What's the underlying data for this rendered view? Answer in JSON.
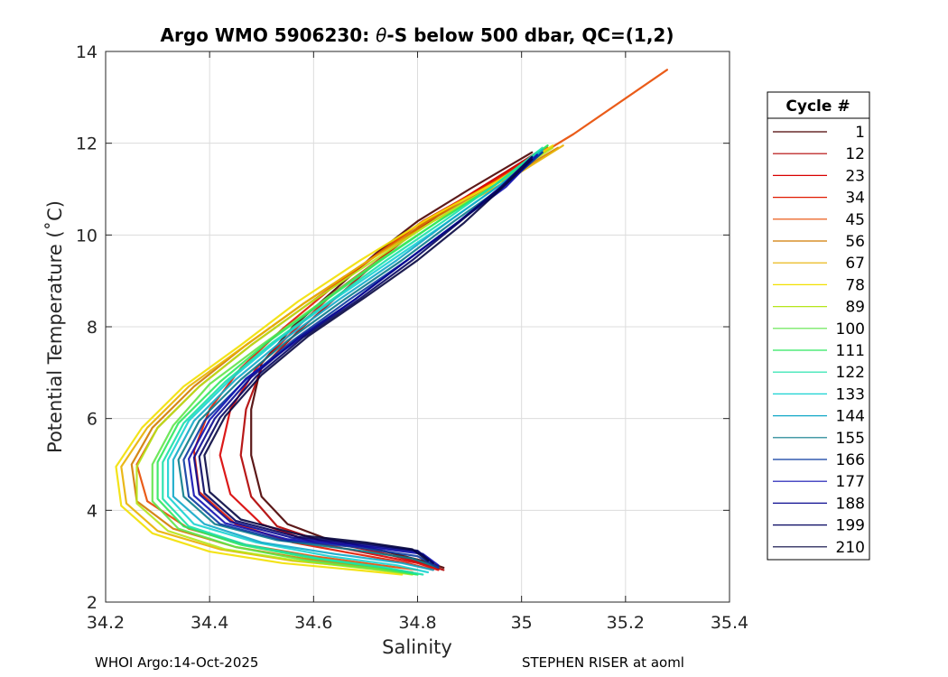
{
  "chart_data": {
    "type": "line",
    "title": "Argo WMO 5906230: θ-S below 500 dbar,  QC=(1,2)",
    "title_parts": {
      "pre": "Argo WMO 5906230: ",
      "theta": "θ",
      "post": "-S below 500 dbar,  QC=(1,2)"
    },
    "xlabel": "Salinity",
    "ylabel": "Potential Temperature (˚C)",
    "xlim": [
      34.2,
      35.4
    ],
    "ylim": [
      2,
      14
    ],
    "x_ticks": [
      34.2,
      34.4,
      34.6,
      34.8,
      35,
      35.2,
      35.4
    ],
    "x_tick_labels": [
      "34.2",
      "34.4",
      "34.6",
      "34.8",
      "35",
      "35.2",
      "35.4"
    ],
    "y_ticks": [
      2,
      4,
      6,
      8,
      10,
      12,
      14
    ],
    "y_tick_labels": [
      "2",
      "4",
      "6",
      "8",
      "10",
      "12",
      "14"
    ],
    "grid": true,
    "legend": {
      "title": "Cycle #",
      "placement": "right, outside",
      "entries": [
        {
          "label": "1",
          "color": "#4a0000"
        },
        {
          "label": "12",
          "color": "#b00000"
        },
        {
          "label": "23",
          "color": "#d80000"
        },
        {
          "label": "34",
          "color": "#e01a00"
        },
        {
          "label": "45",
          "color": "#e84a00"
        },
        {
          "label": "56",
          "color": "#d07a00"
        },
        {
          "label": "67",
          "color": "#e8b000"
        },
        {
          "label": "78",
          "color": "#f2e000"
        },
        {
          "label": "89",
          "color": "#b6e61a"
        },
        {
          "label": "100",
          "color": "#5fe64a"
        },
        {
          "label": "111",
          "color": "#2ee85f"
        },
        {
          "label": "122",
          "color": "#18e0a8"
        },
        {
          "label": "133",
          "color": "#18d2d2"
        },
        {
          "label": "144",
          "color": "#12a8c8"
        },
        {
          "label": "155",
          "color": "#0a7a8a"
        },
        {
          "label": "166",
          "color": "#0a3aa0"
        },
        {
          "label": "177",
          "color": "#1010b0"
        },
        {
          "label": "188",
          "color": "#0a0a90"
        },
        {
          "label": "199",
          "color": "#050560"
        },
        {
          "label": "210",
          "color": "#050540"
        }
      ]
    },
    "series": [
      {
        "name": "1",
        "color": "#4a0000",
        "x": [
          34.85,
          34.81,
          34.72,
          34.62,
          34.55,
          34.5,
          34.48,
          34.48,
          34.5,
          34.56,
          34.64,
          34.72,
          34.8,
          34.9,
          35.02
        ],
        "y": [
          2.75,
          2.9,
          3.15,
          3.4,
          3.7,
          4.3,
          5.2,
          6.2,
          7.2,
          8.0,
          8.8,
          9.6,
          10.3,
          11.0,
          11.8
        ]
      },
      {
        "name": "12",
        "color": "#b00000",
        "x": [
          34.85,
          34.81,
          34.72,
          34.61,
          34.53,
          34.48,
          34.46,
          34.47,
          34.5,
          34.57,
          34.65,
          34.73,
          34.81,
          34.91,
          35.03
        ],
        "y": [
          2.7,
          2.85,
          3.1,
          3.35,
          3.65,
          4.3,
          5.2,
          6.2,
          7.1,
          7.9,
          8.7,
          9.5,
          10.2,
          10.95,
          11.8
        ]
      },
      {
        "name": "23",
        "color": "#d80000",
        "x": [
          34.84,
          34.8,
          34.71,
          34.6,
          34.5,
          34.44,
          34.42,
          34.44,
          34.49,
          34.56,
          34.64,
          34.73,
          34.81,
          34.91,
          35.04
        ],
        "y": [
          2.7,
          2.85,
          3.05,
          3.3,
          3.7,
          4.35,
          5.2,
          6.2,
          7.1,
          7.9,
          8.75,
          9.5,
          10.25,
          10.95,
          11.85
        ]
      },
      {
        "name": "34",
        "color": "#e01a00",
        "x": [
          34.83,
          34.78,
          34.68,
          34.56,
          34.45,
          34.38,
          34.37,
          34.4,
          34.46,
          34.54,
          34.63,
          34.72,
          34.81,
          34.92,
          35.05
        ],
        "y": [
          2.7,
          2.85,
          3.05,
          3.3,
          3.7,
          4.4,
          5.3,
          6.2,
          7.1,
          7.95,
          8.8,
          9.55,
          10.3,
          11.0,
          11.9
        ]
      },
      {
        "name": "45",
        "color": "#e84a00",
        "x": [
          34.8,
          34.73,
          34.6,
          34.47,
          34.36,
          34.28,
          34.26,
          34.3,
          34.38,
          34.48,
          34.59,
          34.7,
          34.81,
          34.94,
          35.1,
          35.28
        ],
        "y": [
          2.7,
          2.8,
          3.0,
          3.25,
          3.6,
          4.2,
          5.0,
          5.8,
          6.7,
          7.6,
          8.5,
          9.4,
          10.3,
          11.1,
          12.2,
          13.6
        ]
      },
      {
        "name": "56",
        "color": "#d07a00",
        "x": [
          34.79,
          34.71,
          34.58,
          34.45,
          34.33,
          34.26,
          34.25,
          34.29,
          34.37,
          34.47,
          34.58,
          34.7,
          34.82,
          34.95,
          35.07
        ],
        "y": [
          2.65,
          2.75,
          2.95,
          3.2,
          3.6,
          4.2,
          5.0,
          5.8,
          6.7,
          7.6,
          8.5,
          9.4,
          10.3,
          11.1,
          11.9
        ]
      },
      {
        "name": "67",
        "color": "#e8b000",
        "x": [
          34.78,
          34.7,
          34.56,
          34.42,
          34.3,
          34.24,
          34.23,
          34.28,
          34.36,
          34.47,
          34.58,
          34.7,
          34.83,
          34.96,
          35.08
        ],
        "y": [
          2.65,
          2.75,
          2.9,
          3.15,
          3.55,
          4.15,
          4.95,
          5.8,
          6.7,
          7.6,
          8.5,
          9.4,
          10.3,
          11.1,
          11.95
        ]
      },
      {
        "name": "78",
        "color": "#f2e000",
        "x": [
          34.77,
          34.68,
          34.54,
          34.4,
          34.29,
          34.23,
          34.22,
          34.27,
          34.35,
          34.46,
          34.57,
          34.69,
          34.82,
          34.95,
          35.06
        ],
        "y": [
          2.6,
          2.7,
          2.85,
          3.1,
          3.5,
          4.1,
          4.95,
          5.8,
          6.7,
          7.6,
          8.55,
          9.45,
          10.35,
          11.15,
          11.95
        ]
      },
      {
        "name": "89",
        "color": "#b6e61a",
        "x": [
          34.79,
          34.71,
          34.57,
          34.43,
          34.32,
          34.26,
          34.26,
          34.3,
          34.38,
          34.48,
          34.59,
          34.71,
          34.83,
          34.95,
          35.06
        ],
        "y": [
          2.6,
          2.72,
          2.9,
          3.15,
          3.55,
          4.15,
          4.95,
          5.8,
          6.7,
          7.6,
          8.5,
          9.4,
          10.3,
          11.1,
          11.9
        ]
      },
      {
        "name": "100",
        "color": "#5fe64a",
        "x": [
          34.8,
          34.72,
          34.59,
          34.45,
          34.34,
          34.29,
          34.29,
          34.33,
          34.4,
          34.5,
          34.61,
          34.72,
          34.84,
          34.95,
          35.05
        ],
        "y": [
          2.6,
          2.72,
          2.9,
          3.2,
          3.6,
          4.2,
          5.0,
          5.85,
          6.75,
          7.6,
          8.5,
          9.4,
          10.3,
          11.1,
          11.95
        ]
      },
      {
        "name": "111",
        "color": "#2ee85f",
        "x": [
          34.8,
          34.73,
          34.6,
          34.46,
          34.35,
          34.3,
          34.3,
          34.34,
          34.42,
          34.51,
          34.62,
          34.73,
          34.84,
          34.95,
          35.05
        ],
        "y": [
          2.6,
          2.75,
          2.95,
          3.25,
          3.65,
          4.25,
          5.05,
          5.9,
          6.8,
          7.65,
          8.55,
          9.45,
          10.3,
          11.1,
          11.95
        ]
      },
      {
        "name": "122",
        "color": "#18e0a8",
        "x": [
          34.81,
          34.74,
          34.61,
          34.47,
          34.36,
          34.31,
          34.31,
          34.35,
          34.43,
          34.52,
          34.63,
          34.74,
          34.85,
          34.95,
          35.04
        ],
        "y": [
          2.6,
          2.75,
          2.95,
          3.25,
          3.65,
          4.25,
          5.05,
          5.9,
          6.8,
          7.65,
          8.55,
          9.45,
          10.3,
          11.1,
          11.9
        ]
      },
      {
        "name": "133",
        "color": "#18d2d2",
        "x": [
          34.82,
          34.76,
          34.63,
          34.49,
          34.37,
          34.32,
          34.32,
          34.36,
          34.44,
          34.53,
          34.64,
          34.75,
          34.86,
          34.96,
          35.04
        ],
        "y": [
          2.65,
          2.8,
          3.0,
          3.3,
          3.7,
          4.3,
          5.1,
          5.95,
          6.85,
          7.7,
          8.6,
          9.45,
          10.3,
          11.1,
          11.85
        ]
      },
      {
        "name": "144",
        "color": "#12a8c8",
        "x": [
          34.83,
          34.77,
          34.64,
          34.5,
          34.39,
          34.33,
          34.33,
          34.37,
          34.45,
          34.54,
          34.65,
          34.76,
          34.86,
          34.96,
          35.04
        ],
        "y": [
          2.7,
          2.85,
          3.05,
          3.3,
          3.7,
          4.3,
          5.1,
          5.95,
          6.85,
          7.7,
          8.6,
          9.45,
          10.3,
          11.1,
          11.85
        ]
      },
      {
        "name": "155",
        "color": "#0a7a8a",
        "x": [
          34.84,
          34.79,
          34.67,
          34.53,
          34.41,
          34.35,
          34.34,
          34.38,
          34.46,
          34.55,
          34.66,
          34.77,
          34.87,
          34.97,
          35.04
        ],
        "y": [
          2.75,
          2.95,
          3.15,
          3.35,
          3.7,
          4.3,
          5.1,
          5.95,
          6.85,
          7.7,
          8.6,
          9.45,
          10.3,
          11.1,
          11.8
        ]
      },
      {
        "name": "166",
        "color": "#0a3aa0",
        "x": [
          34.84,
          34.8,
          34.68,
          34.54,
          34.42,
          34.36,
          34.35,
          34.39,
          34.47,
          34.56,
          34.67,
          34.78,
          34.88,
          34.97,
          35.04
        ],
        "y": [
          2.75,
          3.0,
          3.2,
          3.35,
          3.7,
          4.3,
          5.1,
          5.95,
          6.85,
          7.7,
          8.6,
          9.45,
          10.3,
          11.1,
          11.8
        ]
      },
      {
        "name": "177",
        "color": "#1010b0",
        "x": [
          34.84,
          34.81,
          34.69,
          34.55,
          34.43,
          34.37,
          34.36,
          34.4,
          34.47,
          34.57,
          34.68,
          34.78,
          34.88,
          34.97,
          35.03
        ],
        "y": [
          2.8,
          3.05,
          3.22,
          3.37,
          3.72,
          4.32,
          5.12,
          5.97,
          6.87,
          7.72,
          8.6,
          9.45,
          10.3,
          11.05,
          11.75
        ]
      },
      {
        "name": "188",
        "color": "#0a0a90",
        "x": [
          34.83,
          34.8,
          34.69,
          34.56,
          34.44,
          34.38,
          34.37,
          34.41,
          34.48,
          34.57,
          34.68,
          34.78,
          34.88,
          34.96,
          35.02
        ],
        "y": [
          2.85,
          3.1,
          3.25,
          3.4,
          3.75,
          4.35,
          5.15,
          6.0,
          6.9,
          7.75,
          8.6,
          9.45,
          10.3,
          11.05,
          11.7
        ]
      },
      {
        "name": "199",
        "color": "#050560",
        "x": [
          34.83,
          34.8,
          34.7,
          34.57,
          34.45,
          34.39,
          34.38,
          34.42,
          34.49,
          34.58,
          34.69,
          34.79,
          34.88,
          34.96,
          35.02
        ],
        "y": [
          2.85,
          3.12,
          3.27,
          3.42,
          3.77,
          4.37,
          5.17,
          6.02,
          6.92,
          7.77,
          8.62,
          9.45,
          10.28,
          11.03,
          11.7
        ]
      },
      {
        "name": "210",
        "color": "#050540",
        "x": [
          34.82,
          34.79,
          34.7,
          34.58,
          34.46,
          34.4,
          34.39,
          34.43,
          34.5,
          34.59,
          34.7,
          34.8,
          34.89,
          34.96,
          35.02
        ],
        "y": [
          2.9,
          3.15,
          3.3,
          3.45,
          3.8,
          4.4,
          5.2,
          6.05,
          6.95,
          7.8,
          8.65,
          9.45,
          10.27,
          11.0,
          11.65
        ]
      }
    ]
  },
  "footer": {
    "left": "WHOI Argo:14-Oct-2025",
    "right": "STEPHEN RISER at aoml"
  }
}
